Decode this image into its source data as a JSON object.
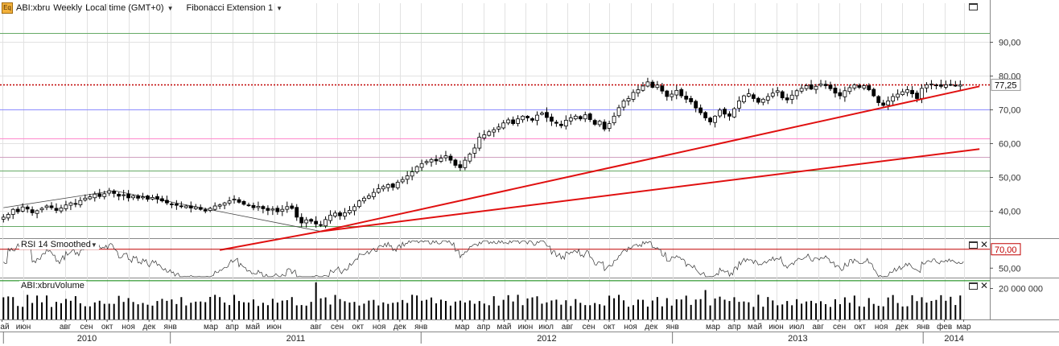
{
  "header": {
    "symbol_badge": "Eq",
    "symbol": "ABI:xbru",
    "period": "Weekly",
    "timezone": "Local time (GMT+0)",
    "indicator": "Fibonacci Extension 1"
  },
  "colors": {
    "up_candle": "#ffffff",
    "down_candle": "#000000",
    "trendline": "#e01010",
    "fib_level_top": "#c00000",
    "fib_level_blue": "#8c8cff",
    "fib_level_pink": "#ff88cc",
    "fib_level_mauve": "#d0a0c0",
    "fib_level_green": "#66aa66",
    "price_label_bg": "#ffffff",
    "rsi_upper": "#c00000",
    "rsi_lower": "#008000"
  },
  "chart_data": [
    {
      "type": "candlestick",
      "name": "price",
      "ylim": [
        32,
        98
      ],
      "y_ticks": [
        "90,00",
        "80,00",
        "70,00",
        "60,00",
        "50,00",
        "40,00"
      ],
      "y_tick_values": [
        90,
        80,
        70,
        60,
        50,
        40
      ],
      "last_price_label": "77,25",
      "last_price": 77.25,
      "fib_levels": [
        {
          "value": 77.25,
          "style": "dotted",
          "color": "fib_level_top"
        },
        {
          "value": 70.0,
          "color": "fib_level_blue"
        },
        {
          "value": 61.5,
          "color": "fib_level_pink"
        },
        {
          "value": 56.0,
          "color": "fib_level_mauve"
        },
        {
          "value": 52.0,
          "color": "fib_level_green"
        },
        {
          "value": 92.5,
          "color": "fib_level_green"
        },
        {
          "value": 35.5,
          "color": "fib_level_green"
        }
      ],
      "trendlines": [
        {
          "from": [
            "2011-08-08",
            34.0
          ],
          "to": [
            "2014-03-24",
            76.8
          ]
        },
        {
          "from": [
            "2011-08-08",
            34.0
          ],
          "to": [
            "2014-03-24",
            58.3
          ]
        },
        {
          "from": [
            "2011-03-14",
            28.5
          ],
          "to": [
            "2011-08-08",
            34.0
          ]
        }
      ],
      "fib_anchor_lines": [
        {
          "from": [
            "2010-10-11",
            46.0
          ],
          "to": [
            "2011-08-08",
            34.0
          ]
        },
        {
          "from": [
            "2010-05-03",
            41.0
          ],
          "to": [
            "2010-10-11",
            46.0
          ]
        }
      ],
      "candles": {
        "start_week": "2010-05-03",
        "weeks": 204,
        "closes": [
          38.2,
          39.0,
          40.5,
          39.8,
          41.2,
          40.6,
          39.5,
          40.1,
          40.8,
          41.5,
          41.0,
          40.2,
          40.9,
          41.8,
          42.4,
          42.0,
          43.1,
          43.8,
          44.2,
          45.0,
          44.3,
          45.1,
          46.0,
          45.2,
          44.4,
          44.8,
          43.9,
          44.5,
          43.8,
          44.2,
          43.5,
          44.0,
          43.6,
          43.0,
          42.4,
          42.0,
          41.7,
          41.3,
          41.5,
          40.9,
          41.2,
          40.5,
          40.0,
          40.8,
          41.5,
          41.8,
          42.4,
          43.0,
          43.5,
          42.6,
          42.0,
          41.6,
          41.0,
          41.4,
          40.7,
          40.2,
          40.6,
          39.8,
          40.5,
          41.3,
          40.8,
          38.2,
          36.5,
          37.4,
          37.0,
          36.2,
          35.8,
          37.5,
          38.8,
          39.4,
          38.6,
          39.5,
          40.2,
          41.3,
          43.0,
          43.8,
          44.5,
          45.5,
          46.6,
          47.2,
          47.8,
          47.0,
          48.5,
          49.3,
          50.4,
          51.6,
          53.1,
          54.0,
          54.6,
          55.2,
          54.8,
          55.6,
          56.3,
          55.0,
          53.5,
          52.8,
          55.0,
          56.8,
          58.6,
          61.8,
          62.5,
          63.4,
          64.0,
          64.8,
          66.0,
          66.9,
          65.8,
          67.2,
          68.0,
          67.5,
          66.8,
          68.3,
          68.9,
          67.6,
          66.5,
          65.9,
          65.2,
          66.8,
          67.5,
          68.0,
          67.2,
          68.4,
          67.0,
          65.6,
          66.5,
          64.2,
          65.8,
          68.0,
          70.5,
          72.5,
          73.2,
          75.0,
          75.8,
          76.9,
          78.1,
          76.5,
          77.2,
          75.4,
          73.8,
          74.5,
          75.6,
          74.0,
          73.0,
          72.2,
          70.4,
          69.0,
          67.5,
          66.3,
          68.0,
          69.8,
          68.6,
          68.0,
          70.2,
          72.5,
          74.0,
          74.6,
          73.2,
          72.1,
          73.0,
          73.8,
          74.8,
          75.5,
          73.4,
          72.8,
          74.2,
          75.5,
          76.2,
          77.0,
          76.0,
          76.8,
          77.5,
          77.0,
          76.1,
          74.8,
          74.0,
          75.5,
          76.4,
          77.2,
          76.5,
          77.0,
          75.8,
          74.0,
          72.0,
          71.2,
          72.5,
          73.8,
          74.5,
          75.2,
          75.8,
          74.6,
          73.2,
          76.2,
          77.25,
          77.5,
          77.0,
          76.8,
          77.25,
          77.3,
          77.1,
          77.25
        ]
      }
    },
    {
      "type": "line",
      "name": "RSI 14 Smoothed",
      "ylim": [
        40,
        80
      ],
      "upper_level": 70,
      "upper_label": "70,00",
      "lower_level": 35,
      "y_ticks": [
        "50,00"
      ],
      "y_tick_values": [
        50
      ]
    },
    {
      "type": "bar",
      "name": "ABI:xbruVolume",
      "y_ticks": [
        "20 000 000"
      ],
      "y_tick_values": [
        20000000
      ],
      "ylim": [
        0,
        26000000
      ]
    }
  ],
  "time_axis": {
    "months": [
      {
        "label": "май",
        "date": "2010-05-01"
      },
      {
        "label": "июн",
        "date": "2010-06-01"
      },
      {
        "label": "авг",
        "date": "2010-08-01"
      },
      {
        "label": "сен",
        "date": "2010-09-01"
      },
      {
        "label": "окт",
        "date": "2010-10-01"
      },
      {
        "label": "ноя",
        "date": "2010-11-01"
      },
      {
        "label": "дек",
        "date": "2010-12-01"
      },
      {
        "label": "янв",
        "date": "2011-01-01"
      },
      {
        "label": "мар",
        "date": "2011-03-01"
      },
      {
        "label": "апр",
        "date": "2011-04-01"
      },
      {
        "label": "май",
        "date": "2011-05-01"
      },
      {
        "label": "июн",
        "date": "2011-06-01"
      },
      {
        "label": "авг",
        "date": "2011-08-01"
      },
      {
        "label": "сен",
        "date": "2011-09-01"
      },
      {
        "label": "окт",
        "date": "2011-10-01"
      },
      {
        "label": "ноя",
        "date": "2011-11-01"
      },
      {
        "label": "дек",
        "date": "2011-12-01"
      },
      {
        "label": "янв",
        "date": "2012-01-01"
      },
      {
        "label": "мар",
        "date": "2012-03-01"
      },
      {
        "label": "апр",
        "date": "2012-04-01"
      },
      {
        "label": "май",
        "date": "2012-05-01"
      },
      {
        "label": "июн",
        "date": "2012-06-01"
      },
      {
        "label": "июл",
        "date": "2012-07-01"
      },
      {
        "label": "авг",
        "date": "2012-08-01"
      },
      {
        "label": "сен",
        "date": "2012-09-01"
      },
      {
        "label": "окт",
        "date": "2012-10-01"
      },
      {
        "label": "ноя",
        "date": "2012-11-01"
      },
      {
        "label": "дек",
        "date": "2012-12-01"
      },
      {
        "label": "янв",
        "date": "2013-01-01"
      },
      {
        "label": "мар",
        "date": "2013-03-01"
      },
      {
        "label": "апр",
        "date": "2013-04-01"
      },
      {
        "label": "май",
        "date": "2013-05-01"
      },
      {
        "label": "июн",
        "date": "2013-06-01"
      },
      {
        "label": "июл",
        "date": "2013-07-01"
      },
      {
        "label": "авг",
        "date": "2013-08-01"
      },
      {
        "label": "сен",
        "date": "2013-09-01"
      },
      {
        "label": "окт",
        "date": "2013-10-01"
      },
      {
        "label": "ноя",
        "date": "2013-11-01"
      },
      {
        "label": "дек",
        "date": "2013-12-01"
      },
      {
        "label": "янв",
        "date": "2014-01-01"
      },
      {
        "label": "фев",
        "date": "2014-02-01"
      },
      {
        "label": "мар",
        "date": "2014-03-01"
      }
    ],
    "years": [
      {
        "label": "2010",
        "date": "2010-05-03",
        "end": "2011-01-01"
      },
      {
        "label": "2011",
        "date": "2011-01-01",
        "end": "2012-01-01"
      },
      {
        "label": "2012",
        "date": "2012-01-01",
        "end": "2013-01-01"
      },
      {
        "label": "2013",
        "date": "2013-01-01",
        "end": "2014-01-01"
      },
      {
        "label": "2014",
        "date": "2014-01-01",
        "end": "2014-04-01"
      }
    ]
  }
}
